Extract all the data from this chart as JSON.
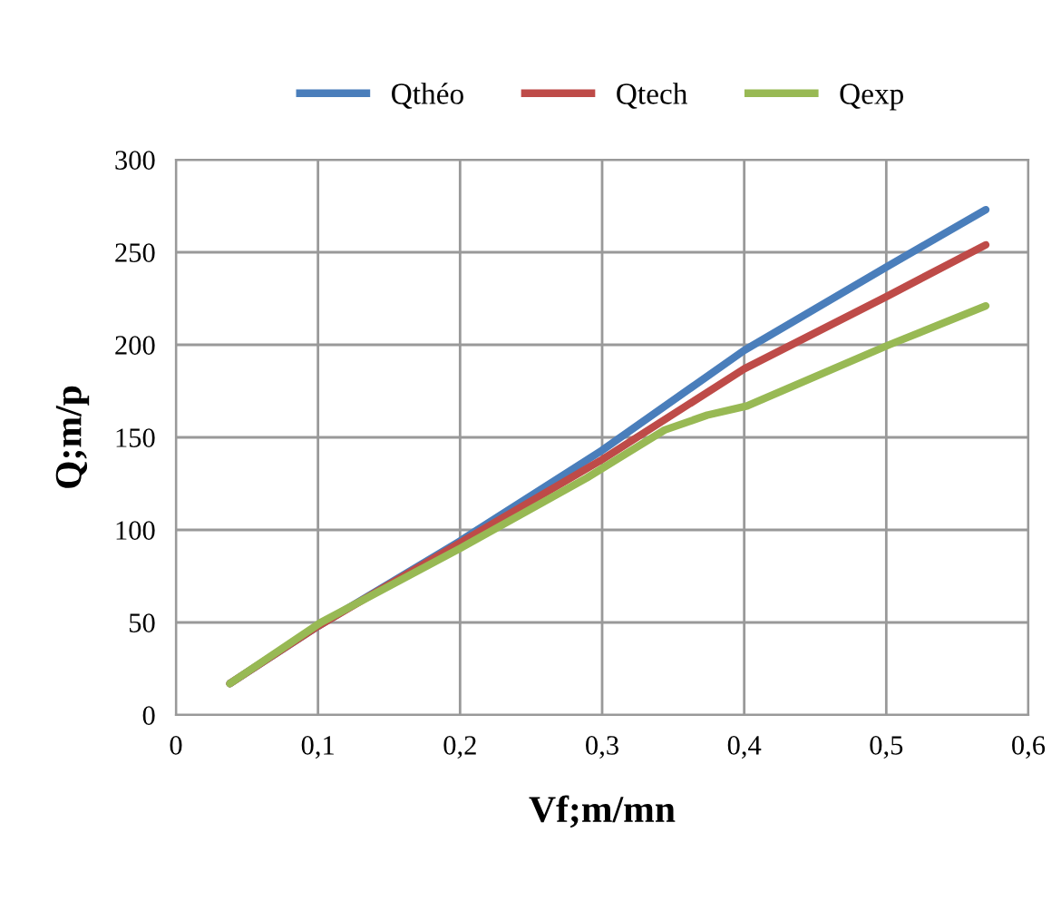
{
  "chart_data": {
    "type": "line",
    "xlabel": "Vf;m/mn",
    "ylabel": "Q;m/p",
    "xlim": [
      0,
      0.6
    ],
    "xticks": [
      {
        "value": 0,
        "label": "0"
      },
      {
        "value": 0.1,
        "label": "0,1"
      },
      {
        "value": 0.2,
        "label": "0,2"
      },
      {
        "value": 0.3,
        "label": "0,3"
      },
      {
        "value": 0.4,
        "label": "0,4"
      },
      {
        "value": 0.5,
        "label": "0,5"
      },
      {
        "value": 0.6,
        "label": "0,6"
      }
    ],
    "ylim": [
      0,
      300
    ],
    "yticks": [
      0,
      50,
      100,
      150,
      200,
      250,
      300
    ],
    "grid": true,
    "legend": "top",
    "marker": "none",
    "line_style": "solid",
    "series": [
      {
        "name": "Qthéo",
        "color": "#4a7ebb",
        "x": [
          0.038,
          0.1,
          0.2,
          0.3,
          0.4,
          0.5,
          0.57
        ],
        "values": [
          17,
          48,
          94,
          143,
          197,
          242,
          273
        ]
      },
      {
        "name": "Qtech",
        "color": "#be4b48",
        "x": [
          0.038,
          0.1,
          0.2,
          0.3,
          0.4,
          0.5,
          0.57
        ],
        "values": [
          17,
          48,
          93,
          138,
          187,
          226,
          254
        ]
      },
      {
        "name": "Qexp",
        "color": "#98b954",
        "x": [
          0.038,
          0.102,
          0.2,
          0.289,
          0.344,
          0.374,
          0.402,
          0.502,
          0.57
        ],
        "values": [
          17,
          50,
          90,
          128,
          154,
          162,
          167,
          200,
          221
        ]
      }
    ]
  }
}
